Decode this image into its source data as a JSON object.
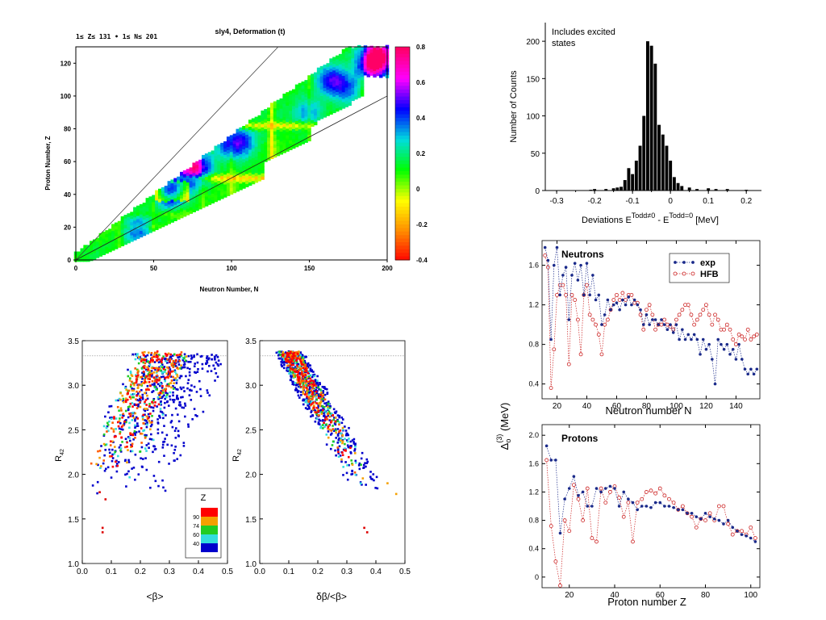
{
  "chart_data": [
    {
      "id": "deformation",
      "type": "heatmap",
      "title": "sly4, Deformation (t)",
      "subtitle": "1≤ Z≤ 131 • 1≤ N≤ 201",
      "xlabel": "Neutron Number, N",
      "ylabel": "Proton Number, Z",
      "xlim": [
        0,
        200
      ],
      "ylim": [
        0,
        130
      ],
      "xticks": [
        "0",
        "50",
        "100",
        "150",
        "200"
      ],
      "yticks": [
        "0",
        "20",
        "40",
        "60",
        "80",
        "100",
        "120"
      ],
      "colorbar": {
        "range": [
          -0.4,
          0.8
        ],
        "ticks": [
          "0.8",
          "0.6",
          "0.4",
          "0.2",
          "0",
          "-0.2",
          "-0.4"
        ],
        "colors": [
          "#ff0000",
          "#ff8c00",
          "#ffff00",
          "#00ff00",
          "#00dddd",
          "#0000ff",
          "#ff00ff",
          "#ff0066"
        ]
      }
    },
    {
      "id": "histogram",
      "type": "bar",
      "annotation": "Includes excited\nstates",
      "xlabel_main": "Deviations E",
      "xlabel_sup1": "Todd≠0",
      "xlabel_mid": " - E",
      "xlabel_sup2": "Todd=0",
      "xlabel_end": " [MeV]",
      "ylabel": "Number of Counts",
      "xlim": [
        -0.33,
        0.24
      ],
      "ylim": [
        0,
        225
      ],
      "xticks": [
        "-0.3",
        "-0.2",
        "-0.1",
        "0",
        "0.1",
        "0.2"
      ],
      "yticks": [
        "0",
        "50",
        "100",
        "150",
        "200"
      ],
      "bin_width": 0.01,
      "bins": [
        {
          "x": -0.21,
          "y": 1
        },
        {
          "x": -0.2,
          "y": 2
        },
        {
          "x": -0.17,
          "y": 2
        },
        {
          "x": -0.15,
          "y": 3
        },
        {
          "x": -0.14,
          "y": 4
        },
        {
          "x": -0.13,
          "y": 5
        },
        {
          "x": -0.12,
          "y": 14
        },
        {
          "x": -0.11,
          "y": 30
        },
        {
          "x": -0.1,
          "y": 22
        },
        {
          "x": -0.09,
          "y": 40
        },
        {
          "x": -0.08,
          "y": 60
        },
        {
          "x": -0.07,
          "y": 100
        },
        {
          "x": -0.06,
          "y": 200
        },
        {
          "x": -0.05,
          "y": 194
        },
        {
          "x": -0.04,
          "y": 170
        },
        {
          "x": -0.03,
          "y": 88
        },
        {
          "x": -0.02,
          "y": 75
        },
        {
          "x": -0.01,
          "y": 60
        },
        {
          "x": 0.0,
          "y": 40
        },
        {
          "x": 0.01,
          "y": 18
        },
        {
          "x": 0.02,
          "y": 10
        },
        {
          "x": 0.03,
          "y": 6
        },
        {
          "x": 0.05,
          "y": 4
        },
        {
          "x": 0.07,
          "y": 2
        },
        {
          "x": 0.1,
          "y": 3
        },
        {
          "x": 0.12,
          "y": 2
        },
        {
          "x": 0.15,
          "y": 2
        },
        {
          "x": 0.2,
          "y": 1
        }
      ]
    },
    {
      "id": "r42_vs_beta",
      "type": "scatter",
      "xlabel": "<β>",
      "ylabel": "R",
      "ylabel_sub": "42",
      "xlim": [
        0,
        0.5
      ],
      "ylim": [
        1.0,
        3.5
      ],
      "xticks": [
        "0.0",
        "0.1",
        "0.2",
        "0.3",
        "0.4",
        "0.5"
      ],
      "yticks": [
        "1.0",
        "1.5",
        "2.0",
        "2.5",
        "3.0",
        "3.5"
      ],
      "reference_line": 3.33,
      "legend": {
        "title": "Z",
        "labels": [
          "90",
          "74",
          "60",
          "40"
        ],
        "colors": [
          "#ff0000",
          "#f5a000",
          "#22cc22",
          "#33dddd",
          "#0000cc"
        ],
        "position": "lower-right"
      }
    },
    {
      "id": "r42_vs_dbeta",
      "type": "scatter",
      "xlabel": "δβ/<β>",
      "ylabel": "R",
      "ylabel_sub": "42",
      "xlim": [
        0,
        0.5
      ],
      "ylim": [
        1.0,
        3.5
      ],
      "xticks": [
        "0.0",
        "0.1",
        "0.2",
        "0.3",
        "0.4",
        "0.5"
      ],
      "yticks": [
        "1.0",
        "1.5",
        "2.0",
        "2.5",
        "3.0",
        "3.5"
      ],
      "reference_line": 3.33
    },
    {
      "id": "neutron_gaps",
      "type": "line",
      "panel_label": "Neutrons",
      "xlabel": "Neutron number N",
      "xlim": [
        10,
        156
      ],
      "ylim": [
        0.25,
        1.85
      ],
      "xticks": [
        "20",
        "40",
        "60",
        "80",
        "100",
        "120",
        "140"
      ],
      "yticks": [
        "0.4",
        "0.8",
        "1.2",
        "1.6"
      ],
      "series": [
        {
          "name": "exp",
          "color": "#1a2a8a",
          "x": [
            12,
            14,
            16,
            18,
            20,
            22,
            24,
            26,
            28,
            30,
            32,
            34,
            36,
            38,
            40,
            42,
            44,
            46,
            48,
            50,
            52,
            54,
            56,
            58,
            60,
            62,
            64,
            66,
            68,
            70,
            72,
            74,
            76,
            78,
            80,
            82,
            84,
            86,
            88,
            90,
            92,
            94,
            96,
            98,
            100,
            102,
            104,
            106,
            108,
            110,
            112,
            114,
            116,
            118,
            120,
            122,
            124,
            126,
            128,
            130,
            132,
            134,
            136,
            138,
            140,
            142,
            144,
            146,
            148,
            150,
            152,
            154
          ],
          "y": [
            1.78,
            1.65,
            0.85,
            1.6,
            1.78,
            1.3,
            1.5,
            1.58,
            1.05,
            1.5,
            1.62,
            1.45,
            1.6,
            1.3,
            1.62,
            1.3,
            1.5,
            1.25,
            1.3,
            1.0,
            1.1,
            1.25,
            1.15,
            1.2,
            1.22,
            1.15,
            1.25,
            1.2,
            1.28,
            1.2,
            1.25,
            1.2,
            1.15,
            1.0,
            1.1,
            1.0,
            1.05,
            1.05,
            1.0,
            1.05,
            1.0,
            0.95,
            1.0,
            0.92,
            1.0,
            0.85,
            0.95,
            0.85,
            0.9,
            0.85,
            0.9,
            0.85,
            0.7,
            0.85,
            0.75,
            0.8,
            0.65,
            0.4,
            0.85,
            0.8,
            0.75,
            0.8,
            0.7,
            0.75,
            0.65,
            0.8,
            0.65,
            0.55,
            0.5,
            0.55,
            0.5,
            0.55
          ]
        },
        {
          "name": "HFB",
          "color": "#cc2222",
          "x": [
            12,
            14,
            16,
            18,
            20,
            22,
            24,
            26,
            28,
            30,
            32,
            34,
            36,
            38,
            40,
            42,
            44,
            46,
            48,
            50,
            52,
            54,
            56,
            58,
            60,
            62,
            64,
            66,
            68,
            70,
            72,
            74,
            76,
            78,
            80,
            82,
            84,
            86,
            88,
            90,
            92,
            94,
            96,
            98,
            100,
            102,
            104,
            106,
            108,
            110,
            112,
            114,
            116,
            118,
            120,
            122,
            124,
            126,
            128,
            130,
            132,
            134,
            136,
            138,
            140,
            142,
            144,
            146,
            148,
            150,
            152,
            154
          ],
          "y": [
            1.7,
            1.58,
            0.36,
            0.75,
            1.3,
            1.4,
            1.4,
            1.3,
            0.6,
            1.3,
            1.25,
            1.05,
            0.7,
            1.3,
            1.4,
            1.1,
            1.05,
            1.0,
            0.9,
            0.7,
            1.0,
            1.05,
            1.15,
            1.25,
            1.3,
            1.25,
            1.32,
            1.25,
            1.3,
            1.3,
            1.22,
            1.22,
            1.1,
            0.95,
            1.15,
            1.2,
            1.1,
            0.95,
            1.0,
            1.0,
            1.05,
            1.0,
            0.98,
            0.95,
            1.05,
            1.1,
            1.15,
            1.2,
            1.2,
            1.1,
            1.0,
            1.05,
            1.1,
            1.15,
            1.2,
            1.1,
            1.0,
            1.1,
            1.05,
            0.95,
            0.95,
            1.0,
            0.95,
            0.85,
            0.8,
            0.9,
            0.88,
            0.85,
            0.95,
            0.85,
            0.88,
            0.9
          ]
        }
      ],
      "legend_position": "top-right"
    },
    {
      "id": "proton_gaps",
      "type": "line",
      "panel_label": "Protons",
      "xlabel": "Proton number Z",
      "shared_ylabel": "Δ",
      "shared_ylabel_sub": "o",
      "shared_ylabel_sup": "(3)",
      "shared_ylabel_unit": " (MeV)",
      "xlim": [
        8,
        104
      ],
      "ylim": [
        -0.15,
        2.15
      ],
      "xticks": [
        "20",
        "40",
        "60",
        "80",
        "100"
      ],
      "yticks": [
        "0",
        "0.4",
        "0.8",
        "1.2",
        "1.6",
        "2.0"
      ],
      "series": [
        {
          "name": "exp",
          "color": "#1a2a8a",
          "x": [
            10,
            12,
            14,
            16,
            18,
            20,
            22,
            24,
            26,
            28,
            30,
            32,
            34,
            36,
            38,
            40,
            42,
            44,
            46,
            48,
            50,
            52,
            54,
            56,
            58,
            60,
            62,
            64,
            66,
            68,
            70,
            72,
            74,
            76,
            78,
            80,
            82,
            84,
            86,
            88,
            90,
            92,
            94,
            96,
            98,
            100,
            102
          ],
          "y": [
            1.85,
            1.65,
            1.65,
            0.62,
            1.1,
            1.25,
            1.42,
            1.15,
            1.2,
            1.0,
            1.0,
            1.25,
            1.2,
            1.25,
            1.28,
            1.25,
            1.0,
            1.2,
            1.1,
            1.05,
            0.95,
            1.0,
            1.0,
            0.98,
            1.05,
            1.05,
            1.0,
            1.0,
            0.98,
            0.95,
            0.95,
            0.9,
            0.9,
            0.85,
            0.82,
            0.9,
            0.85,
            0.82,
            0.8,
            0.75,
            0.8,
            0.7,
            0.65,
            0.6,
            0.58,
            0.55,
            0.5
          ]
        },
        {
          "name": "HFB",
          "color": "#cc2222",
          "x": [
            10,
            12,
            14,
            16,
            18,
            20,
            22,
            24,
            26,
            28,
            30,
            32,
            34,
            36,
            38,
            40,
            42,
            44,
            46,
            48,
            50,
            52,
            54,
            56,
            58,
            60,
            62,
            64,
            66,
            68,
            70,
            72,
            74,
            76,
            78,
            80,
            82,
            84,
            86,
            88,
            90,
            92,
            94,
            96,
            98,
            100,
            102
          ],
          "y": [
            1.65,
            0.72,
            0.22,
            -0.12,
            0.8,
            0.65,
            1.3,
            1.1,
            0.8,
            1.25,
            0.55,
            0.5,
            1.25,
            1.05,
            1.2,
            1.28,
            1.12,
            0.85,
            1.05,
            0.5,
            1.05,
            1.1,
            1.2,
            1.22,
            1.18,
            1.25,
            1.15,
            1.1,
            1.05,
            0.95,
            1.0,
            0.9,
            0.85,
            0.7,
            0.82,
            0.8,
            0.9,
            0.8,
            1.0,
            1.0,
            0.75,
            0.6,
            0.65,
            0.65,
            0.6,
            0.7,
            0.55
          ]
        }
      ]
    }
  ]
}
